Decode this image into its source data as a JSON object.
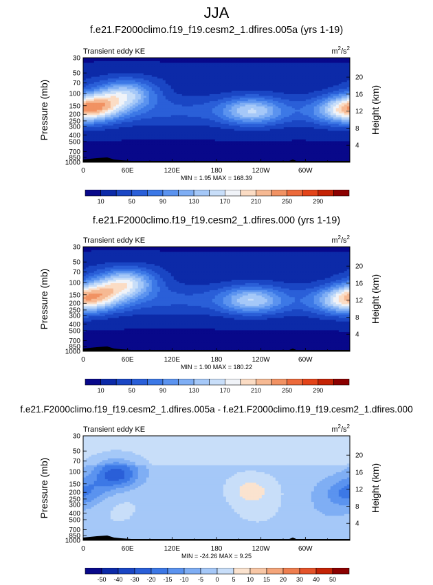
{
  "title": "JJA",
  "chart_data": [
    {
      "type": "heatmap",
      "title": "f.e21.F2000climo.f19_f19.cesm2_1.dfires.005a (yrs 1-19)",
      "left_string": "Transient eddy KE",
      "units_base": "m",
      "units_exp1": "2",
      "units_mid": "/s",
      "units_exp2": "2",
      "ylabel": "Pressure (mb)",
      "ylabel_right": "Height (km)",
      "x_ticks": [
        "0",
        "60E",
        "120E",
        "180",
        "120W",
        "60W"
      ],
      "y_ticks": [
        "30",
        "50",
        "70",
        "100",
        "150",
        "200",
        "250",
        "300",
        "400",
        "500",
        "700",
        "850",
        "1000"
      ],
      "y_right_ticks": [
        "20",
        "16",
        "12",
        "8",
        "4"
      ],
      "min_max_text": "MIN =   1.95  MAX = 168.39",
      "colorbar_labels": [
        "10",
        "50",
        "90",
        "130",
        "170",
        "210",
        "250",
        "290"
      ],
      "colorbar_colors": [
        "#08088a",
        "#0c2aa8",
        "#1a46c4",
        "#2a5fd8",
        "#3c78e6",
        "#5b93ef",
        "#7faef4",
        "#a5c8f8",
        "#c8def9",
        "#f0f3f8",
        "#fbdcc4",
        "#f6b993",
        "#f19263",
        "#ec6a3b",
        "#e34419",
        "#c42305",
        "#8b0000"
      ],
      "min": 1.95,
      "max": 168.39,
      "peaks": [
        {
          "lon": 18,
          "p": 150,
          "v": 168
        },
        {
          "lon": 58,
          "p": 100,
          "v": 160
        },
        {
          "lon": 228,
          "p": 180,
          "v": 140
        },
        {
          "lon": 352,
          "p": 180,
          "v": 130
        }
      ]
    },
    {
      "type": "heatmap",
      "title": "f.e21.F2000climo.f19_f19.cesm2_1.dfires.000 (yrs 1-19)",
      "left_string": "Transient eddy KE",
      "units_base": "m",
      "units_exp1": "2",
      "units_mid": "/s",
      "units_exp2": "2",
      "ylabel": "Pressure (mb)",
      "ylabel_right": "Height (km)",
      "x_ticks": [
        "0",
        "60E",
        "120E",
        "180",
        "120W",
        "60W"
      ],
      "y_ticks": [
        "30",
        "50",
        "70",
        "100",
        "150",
        "200",
        "250",
        "300",
        "400",
        "500",
        "700",
        "850",
        "1000"
      ],
      "y_right_ticks": [
        "20",
        "16",
        "12",
        "8",
        "4"
      ],
      "min_max_text": "MIN =   1.90  MAX = 180.22",
      "colorbar_labels": [
        "10",
        "50",
        "90",
        "130",
        "170",
        "210",
        "250",
        "290"
      ],
      "colorbar_colors": [
        "#08088a",
        "#0c2aa8",
        "#1a46c4",
        "#2a5fd8",
        "#3c78e6",
        "#5b93ef",
        "#7faef4",
        "#a5c8f8",
        "#c8def9",
        "#f0f3f8",
        "#fbdcc4",
        "#f6b993",
        "#f19263",
        "#ec6a3b",
        "#e34419",
        "#c42305",
        "#8b0000"
      ],
      "min": 1.9,
      "max": 180.22,
      "peaks": [
        {
          "lon": 18,
          "p": 150,
          "v": 160
        },
        {
          "lon": 58,
          "p": 100,
          "v": 180
        },
        {
          "lon": 228,
          "p": 180,
          "v": 138
        },
        {
          "lon": 352,
          "p": 190,
          "v": 130
        }
      ]
    },
    {
      "type": "heatmap",
      "title": "f.e21.F2000climo.f19_f19.cesm2_1.dfires.005a - f.e21.F2000climo.f19_f19.cesm2_1.dfires.000",
      "left_string": "Transient eddy KE",
      "units_base": "m",
      "units_exp1": "2",
      "units_mid": "/s",
      "units_exp2": "2",
      "ylabel": "Pressure (mb)",
      "ylabel_right": "Height (km)",
      "x_ticks": [
        "0",
        "60E",
        "120E",
        "180",
        "120W",
        "60W"
      ],
      "y_ticks": [
        "30",
        "50",
        "70",
        "100",
        "150",
        "200",
        "250",
        "300",
        "400",
        "500",
        "700",
        "850",
        "1000"
      ],
      "y_right_ticks": [
        "20",
        "16",
        "12",
        "8",
        "4"
      ],
      "min_max_text": "MIN = -24.26  MAX =   9.25",
      "colorbar_labels": [
        "-50",
        "-40",
        "-30",
        "-20",
        "-15",
        "-10",
        "-5",
        "0",
        "5",
        "10",
        "15",
        "20",
        "30",
        "40",
        "50"
      ],
      "colorbar_colors": [
        "#08088a",
        "#0c2aa8",
        "#1a46c4",
        "#2a5fd8",
        "#3c78e6",
        "#5b93ef",
        "#7faef4",
        "#a5c8f8",
        "#c8def9",
        "#fbe3cf",
        "#f8c7a6",
        "#f4a57a",
        "#ee7e4f",
        "#e4532a",
        "#c42305",
        "#8b0000"
      ],
      "min": -24.26,
      "max": 9.25,
      "anomalies": [
        {
          "lon": 45,
          "p": 110,
          "v": -22
        },
        {
          "lon": 5,
          "p": 200,
          "v": -8
        },
        {
          "lon": 225,
          "p": 185,
          "v": 7
        },
        {
          "lon": 355,
          "p": 200,
          "v": -6
        }
      ]
    }
  ]
}
